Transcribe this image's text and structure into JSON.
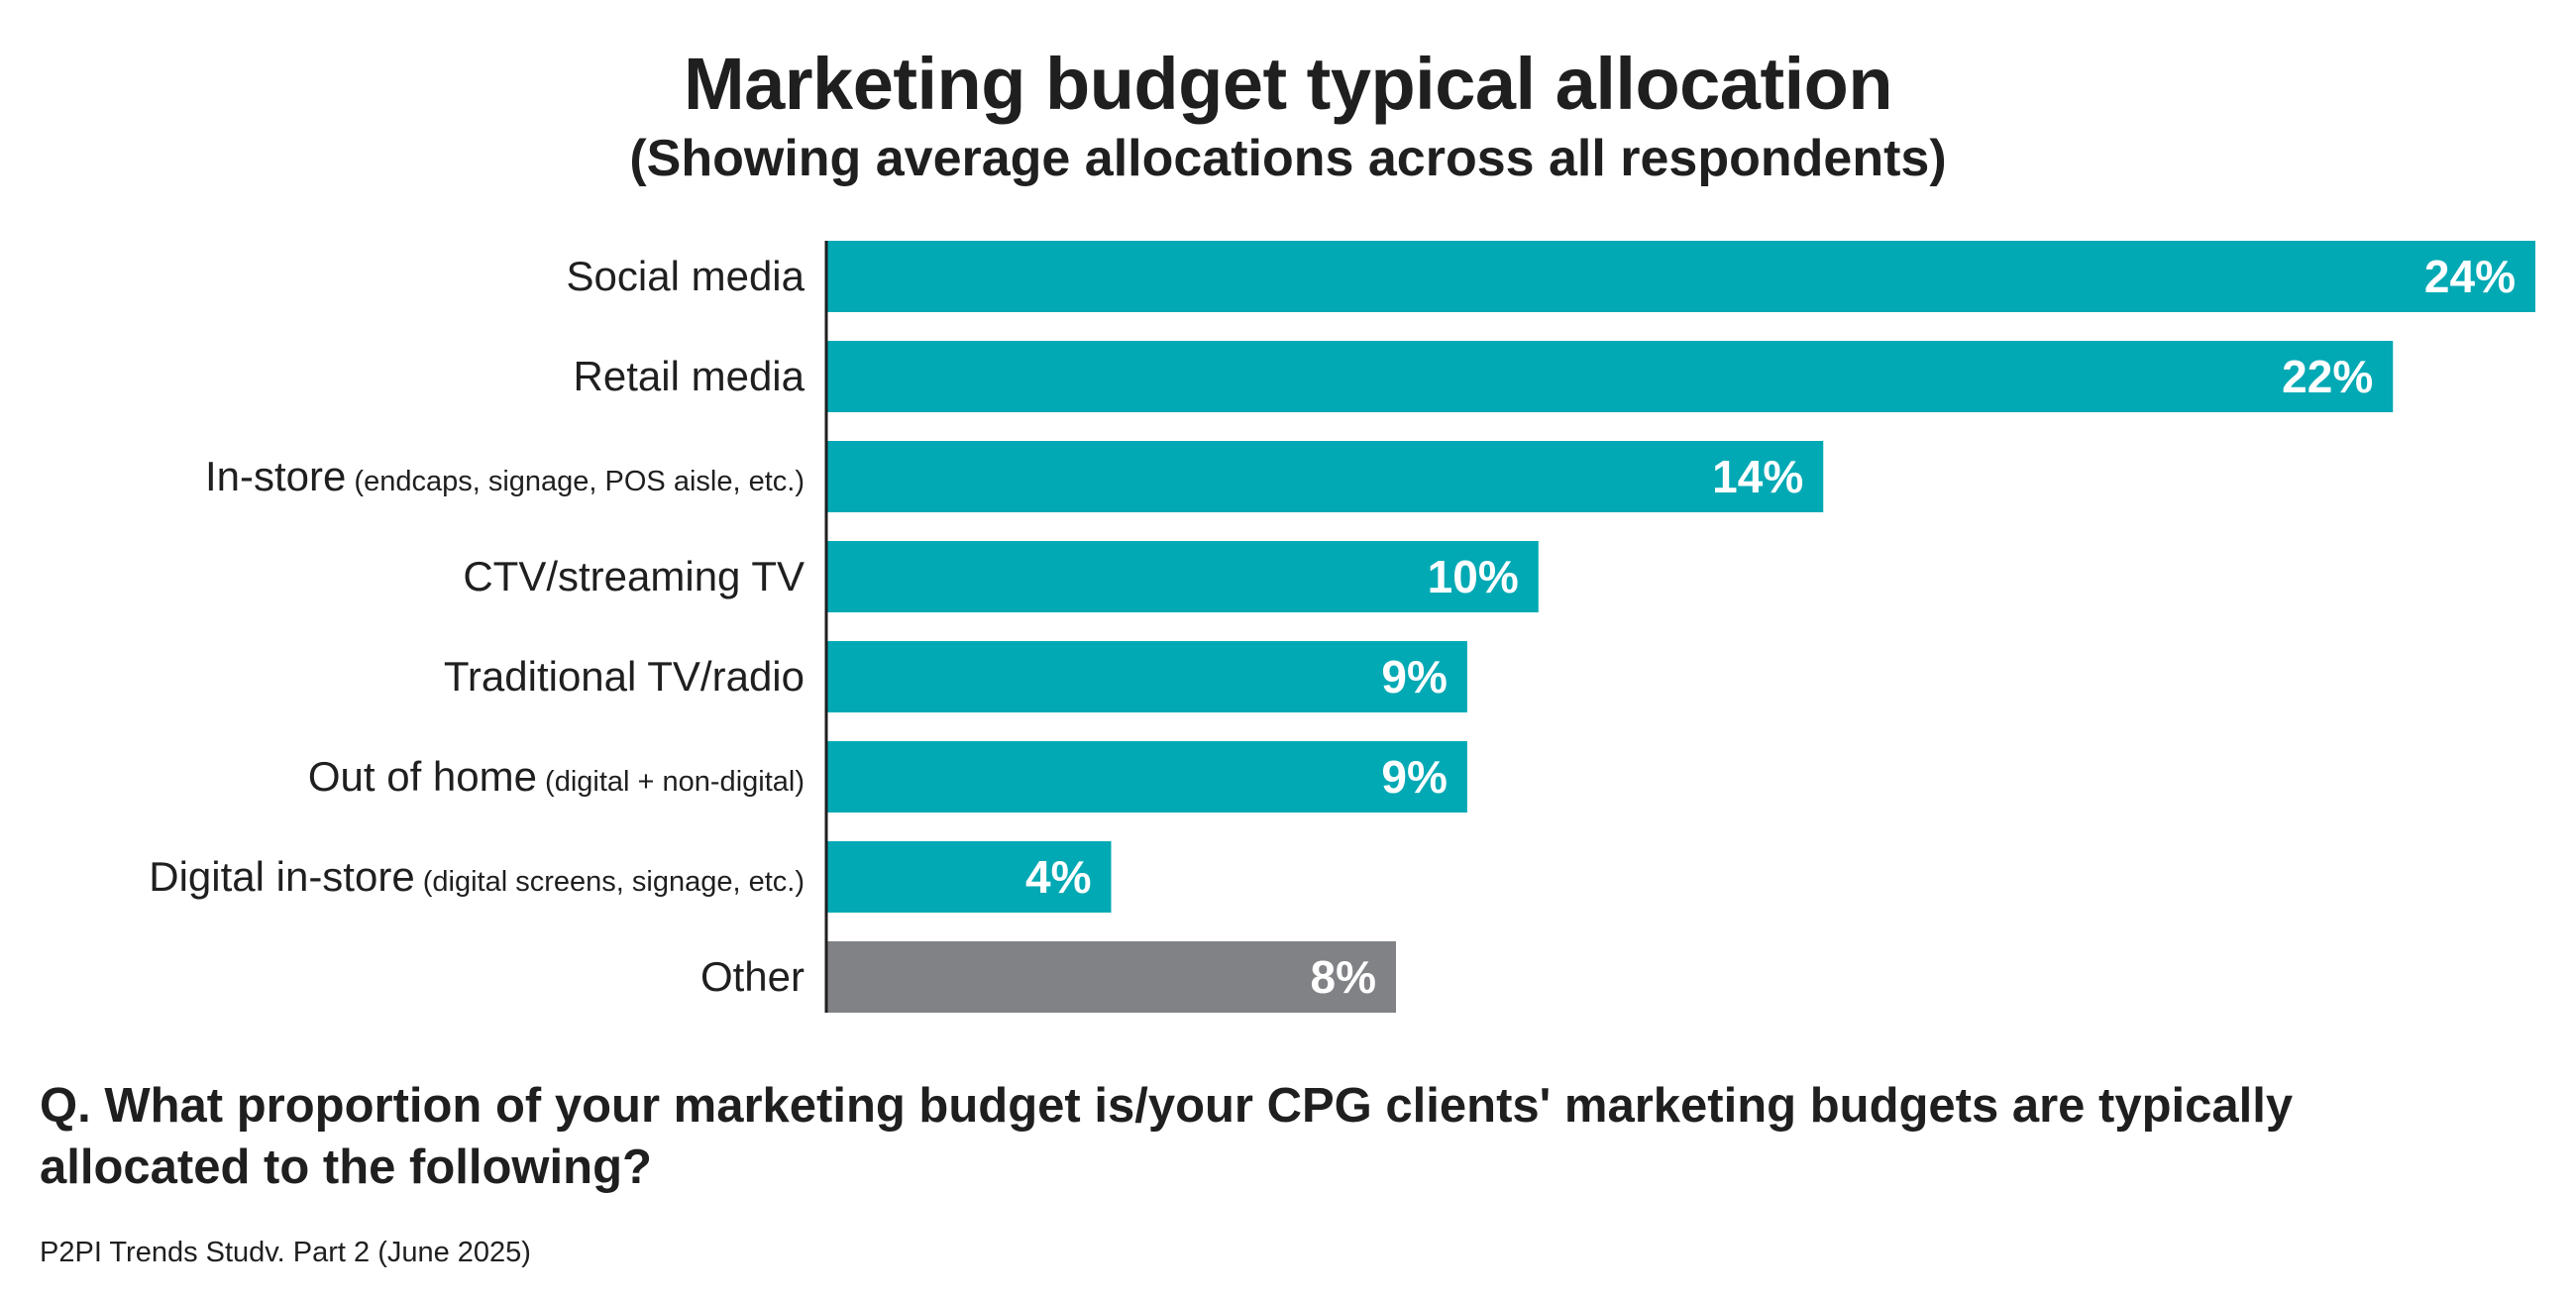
{
  "chart_data": {
    "type": "bar",
    "orientation": "horizontal",
    "title": "Marketing budget typical allocation",
    "subtitle": "(Showing average allocations across all respondents)",
    "categories": [
      {
        "label": "Social media",
        "note": ""
      },
      {
        "label": "Retail media",
        "note": ""
      },
      {
        "label": "In-store",
        "note": "(endcaps, signage, POS aisle, etc.)"
      },
      {
        "label": "CTV/streaming TV",
        "note": ""
      },
      {
        "label": "Traditional TV/radio",
        "note": ""
      },
      {
        "label": "Out of home",
        "note": "(digital + non-digital)"
      },
      {
        "label": "Digital in-store",
        "note": "(digital screens, signage, etc.)"
      },
      {
        "label": "Other",
        "note": ""
      }
    ],
    "values": [
      24,
      22,
      14,
      10,
      9,
      9,
      4,
      8
    ],
    "value_labels": [
      "24%",
      "22%",
      "14%",
      "10%",
      "9%",
      "9%",
      "4%",
      "8%"
    ],
    "unit": "%",
    "xlim": [
      0,
      24
    ],
    "grid": false,
    "legend": "none",
    "colors": {
      "primary": "#00a9b4",
      "other": "#808285"
    }
  },
  "question": "Q. What proportion of your marketing budget is/your CPG clients' marketing budgets are typically allocated to the following?",
  "source": "P2PI Trends Studv. Part 2 (June 2025)"
}
